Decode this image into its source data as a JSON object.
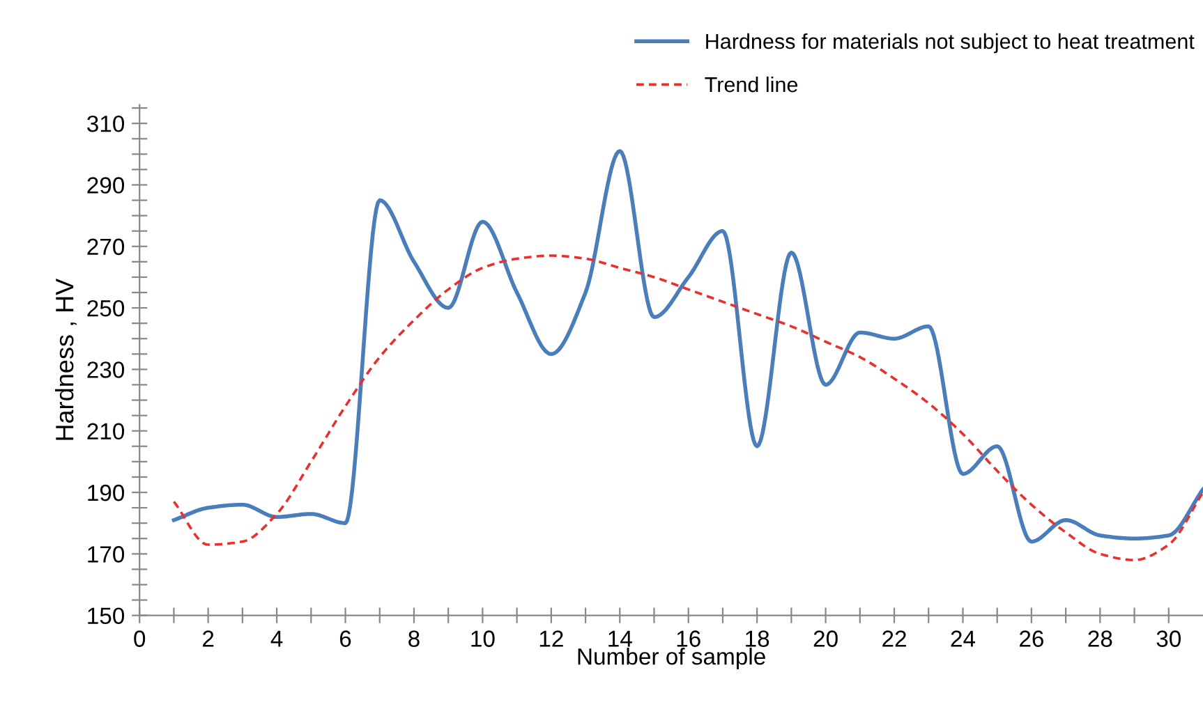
{
  "chart_data": {
    "type": "line",
    "xlabel": "Number of sample",
    "ylabel": "Hardness , HV",
    "x": [
      1,
      2,
      3,
      4,
      5,
      6,
      7,
      8,
      9,
      10,
      11,
      12,
      13,
      14,
      15,
      16,
      17,
      18,
      19,
      20,
      21,
      22,
      23,
      24,
      25,
      26,
      27,
      28,
      29,
      30,
      31
    ],
    "series": [
      {
        "name": "Hardness for materials not subject to heat treatment",
        "color": "#4a7ebb",
        "line_style": "solid",
        "values": [
          181,
          185,
          186,
          182,
          183,
          180,
          285,
          265,
          250,
          278,
          255,
          235,
          255,
          301,
          247,
          260,
          275,
          205,
          268,
          225,
          242,
          240,
          244,
          196,
          205,
          174,
          181,
          176,
          175,
          176,
          191
        ]
      },
      {
        "name": "Trend line",
        "color": "#e8312f",
        "line_style": "dashed",
        "values": [
          187,
          173,
          174,
          183,
          200,
          218,
          234,
          246,
          256,
          263,
          266,
          267,
          266,
          263,
          260,
          256,
          252,
          248,
          244,
          239,
          234,
          227,
          219,
          209,
          197,
          186,
          177,
          170,
          168,
          173,
          190
        ]
      }
    ],
    "xlim": [
      0,
      31
    ],
    "xticks": [
      0,
      {
        "value": 1,
        "label": null
      },
      2,
      {
        "value": 3,
        "label": null
      },
      4,
      {
        "value": 5,
        "label": null
      },
      6,
      {
        "value": 7,
        "label": null
      },
      8,
      {
        "value": 9,
        "label": null
      },
      10,
      {
        "value": 11,
        "label": null
      },
      12,
      {
        "value": 13,
        "label": null
      },
      14,
      {
        "value": 15,
        "label": null
      },
      16,
      {
        "value": 17,
        "label": null
      },
      18,
      {
        "value": 19,
        "label": null
      },
      20,
      {
        "value": 21,
        "label": null
      },
      22,
      {
        "value": 23,
        "label": null
      },
      24,
      {
        "value": 25,
        "label": null
      },
      26,
      {
        "value": 27,
        "label": null
      },
      28,
      {
        "value": 29,
        "label": null
      },
      30
    ],
    "ylim": [
      150,
      316
    ],
    "yticks": [
      150,
      {
        "value": 155,
        "label": null
      },
      {
        "value": 160,
        "label": null
      },
      {
        "value": 165,
        "label": null
      },
      170,
      {
        "value": 175,
        "label": null
      },
      {
        "value": 180,
        "label": null
      },
      {
        "value": 185,
        "label": null
      },
      190,
      {
        "value": 195,
        "label": null
      },
      {
        "value": 200,
        "label": null
      },
      {
        "value": 205,
        "label": null
      },
      210,
      {
        "value": 215,
        "label": null
      },
      {
        "value": 220,
        "label": null
      },
      {
        "value": 225,
        "label": null
      },
      230,
      {
        "value": 235,
        "label": null
      },
      {
        "value": 240,
        "label": null
      },
      {
        "value": 245,
        "label": null
      },
      250,
      {
        "value": 255,
        "label": null
      },
      {
        "value": 260,
        "label": null
      },
      {
        "value": 265,
        "label": null
      },
      270,
      {
        "value": 275,
        "label": null
      },
      {
        "value": 280,
        "label": null
      },
      {
        "value": 285,
        "label": null
      },
      290,
      {
        "value": 295,
        "label": null
      },
      {
        "value": 300,
        "label": null
      },
      {
        "value": 305,
        "label": null
      },
      310,
      {
        "value": 315,
        "label": null
      }
    ],
    "grid": false,
    "legend": "top right",
    "marker": "none"
  }
}
